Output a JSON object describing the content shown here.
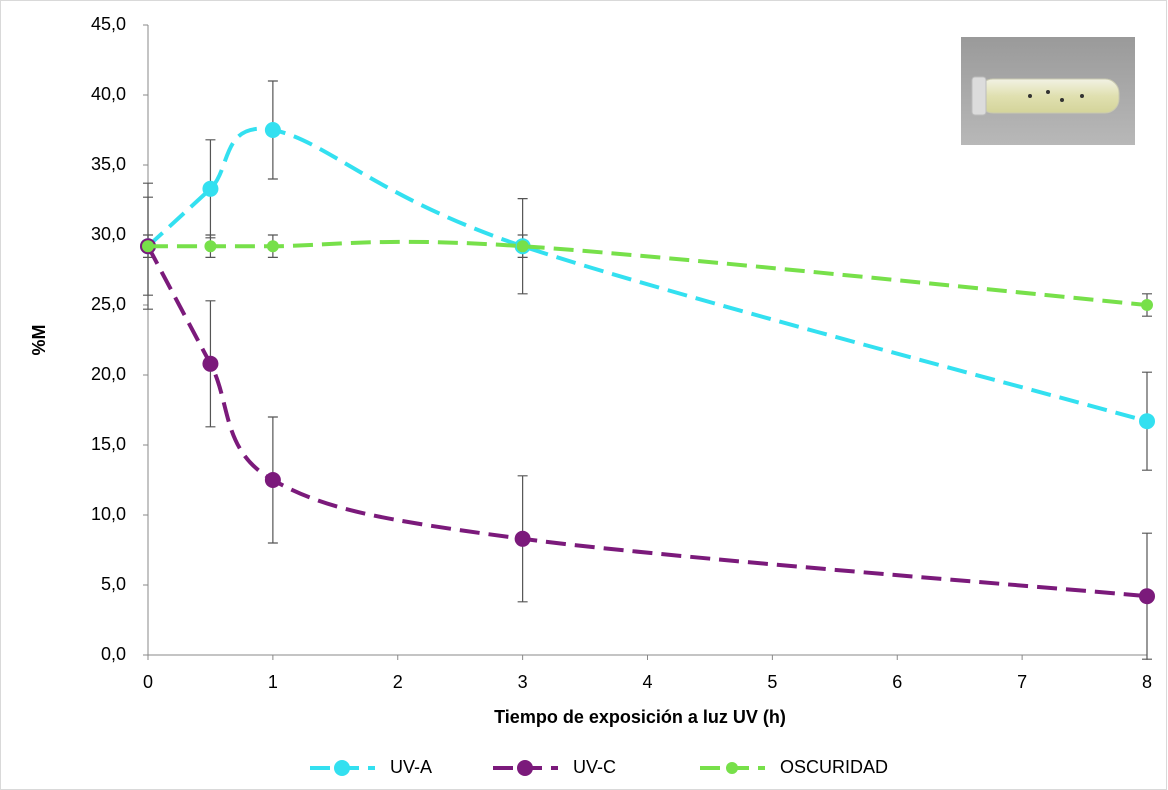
{
  "chart_data": {
    "type": "line",
    "x_label": "Tiempo de exposición a luz UV (h)",
    "y_label": "%M",
    "x": [
      0,
      0.5,
      1,
      3,
      8
    ],
    "series": [
      {
        "name": "UV-A",
        "color": "#33e0f0",
        "values": [
          29.2,
          33.3,
          37.5,
          29.2,
          16.7
        ],
        "errors": [
          3.5,
          3.5,
          3.5,
          3.4,
          3.5
        ]
      },
      {
        "name": "UV-C",
        "color": "#7b1a7b",
        "values": [
          29.2,
          20.8,
          12.5,
          8.3,
          4.2
        ],
        "errors": [
          4.5,
          4.5,
          4.5,
          4.5,
          4.5
        ]
      },
      {
        "name": "OSCURIDAD",
        "color": "#77e04a",
        "values": [
          29.2,
          29.2,
          29.2,
          29.2,
          25.0
        ],
        "errors": [
          0.8,
          0.8,
          0.8,
          0.8,
          0.8
        ]
      }
    ],
    "xlim": [
      0,
      8
    ],
    "xticks": [
      0,
      1,
      2,
      3,
      4,
      5,
      6,
      7,
      8
    ],
    "ylim": [
      0,
      45
    ],
    "yticks": [
      {
        "value": 0,
        "label": "0,0"
      },
      {
        "value": 5,
        "label": "5,0"
      },
      {
        "value": 10,
        "label": "10,0"
      },
      {
        "value": 15,
        "label": "15,0"
      },
      {
        "value": 20,
        "label": "20,0"
      },
      {
        "value": 25,
        "label": "25,0"
      },
      {
        "value": 30,
        "label": "30,0"
      },
      {
        "value": 35,
        "label": "35,0"
      },
      {
        "value": 40,
        "label": "40,0"
      },
      {
        "value": 45,
        "label": "45,0"
      }
    ],
    "legend": "bottom"
  }
}
